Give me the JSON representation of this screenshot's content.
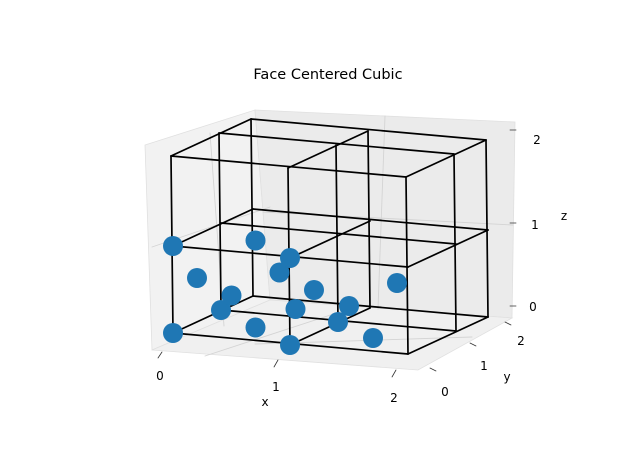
{
  "chart_data": {
    "type": "scatter",
    "title": "Face Centered Cubic",
    "xlabel": "x",
    "ylabel": "y",
    "zlabel": "z",
    "x_ticks": [
      "0",
      "1",
      "2"
    ],
    "y_ticks": [
      "0",
      "1",
      "2"
    ],
    "z_ticks": [
      "0",
      "1",
      "2"
    ],
    "xlim": [
      0,
      2
    ],
    "ylim": [
      0,
      2
    ],
    "zlim": [
      0,
      2
    ],
    "grid": true,
    "marker_color": "#1f77b4",
    "edge_color": "#000000",
    "points": [
      {
        "x": 0,
        "y": 0,
        "z": 0
      },
      {
        "x": 1,
        "y": 0,
        "z": 0
      },
      {
        "x": 1,
        "y": 1,
        "z": 0
      },
      {
        "x": 0,
        "y": 1,
        "z": 0
      },
      {
        "x": 0.5,
        "y": 0.5,
        "z": 0
      },
      {
        "x": 1.5,
        "y": 0.5,
        "z": 0
      },
      {
        "x": 0.5,
        "y": 1.5,
        "z": 0
      },
      {
        "x": 0.5,
        "y": 0,
        "z": 0.5
      },
      {
        "x": 1.5,
        "y": 0,
        "z": 0.5
      },
      {
        "x": 0,
        "y": 0.5,
        "z": 0.5
      },
      {
        "x": 1,
        "y": 0.5,
        "z": 0.5
      },
      {
        "x": 0.5,
        "y": 1,
        "z": 0.5
      },
      {
        "x": 1.5,
        "y": 1,
        "z": 0.5
      },
      {
        "x": 0,
        "y": 0,
        "z": 1
      },
      {
        "x": 1,
        "y": 0,
        "z": 1
      },
      {
        "x": 0.5,
        "y": 0.5,
        "z": 1
      }
    ]
  }
}
